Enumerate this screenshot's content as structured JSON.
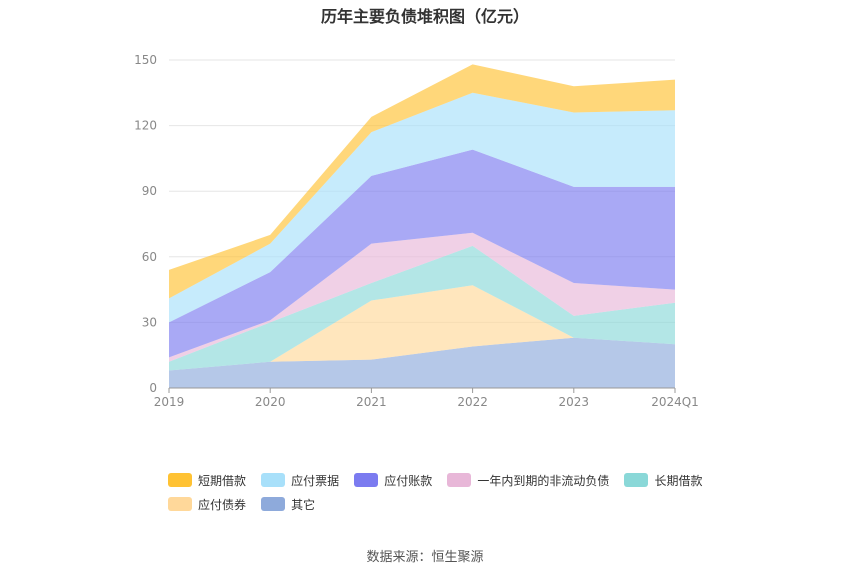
{
  "title": "历年主要负债堆积图（亿元）",
  "source": "数据来源：恒生聚源",
  "chart_data": {
    "type": "area",
    "stacked": true,
    "title": "历年主要负债堆积图（亿元）",
    "xlabel": "",
    "ylabel": "",
    "categories": [
      "2019",
      "2020",
      "2021",
      "2022",
      "2023",
      "2024Q1"
    ],
    "ylim": [
      0,
      150
    ],
    "yticks": [
      0,
      30,
      60,
      90,
      120,
      150
    ],
    "grid": true,
    "legend_position": "bottom",
    "series": [
      {
        "name": "其它",
        "color": "#8eaadb",
        "values": [
          8,
          12,
          13,
          19,
          23,
          20
        ]
      },
      {
        "name": "应付债券",
        "color": "#ffd89a",
        "values": [
          0,
          0,
          27,
          28,
          0,
          0
        ]
      },
      {
        "name": "长期借款",
        "color": "#8ad8d8",
        "values": [
          4,
          18,
          8,
          18,
          10,
          19
        ]
      },
      {
        "name": "一年内到期的非流动负债",
        "color": "#e8b7d8",
        "values": [
          2,
          1,
          18,
          6,
          15,
          6
        ]
      },
      {
        "name": "应付账款",
        "color": "#7b7bf0",
        "values": [
          16,
          22,
          31,
          38,
          44,
          47
        ]
      },
      {
        "name": "应付票据",
        "color": "#a8e0fa",
        "values": [
          11,
          13,
          20,
          26,
          34,
          35
        ]
      },
      {
        "name": "短期借款",
        "color": "#ffc233",
        "values": [
          13,
          4,
          7,
          13,
          12,
          14
        ]
      }
    ]
  },
  "legend": [
    {
      "name": "短期借款",
      "color": "#ffc233"
    },
    {
      "name": "应付票据",
      "color": "#a8e0fa"
    },
    {
      "name": "应付账款",
      "color": "#7b7bf0"
    },
    {
      "name": "一年内到期的非流动负债",
      "color": "#e8b7d8"
    },
    {
      "name": "长期借款",
      "color": "#8ad8d8"
    },
    {
      "name": "应付债券",
      "color": "#ffd89a"
    },
    {
      "name": "其它",
      "color": "#8eaadb"
    }
  ]
}
